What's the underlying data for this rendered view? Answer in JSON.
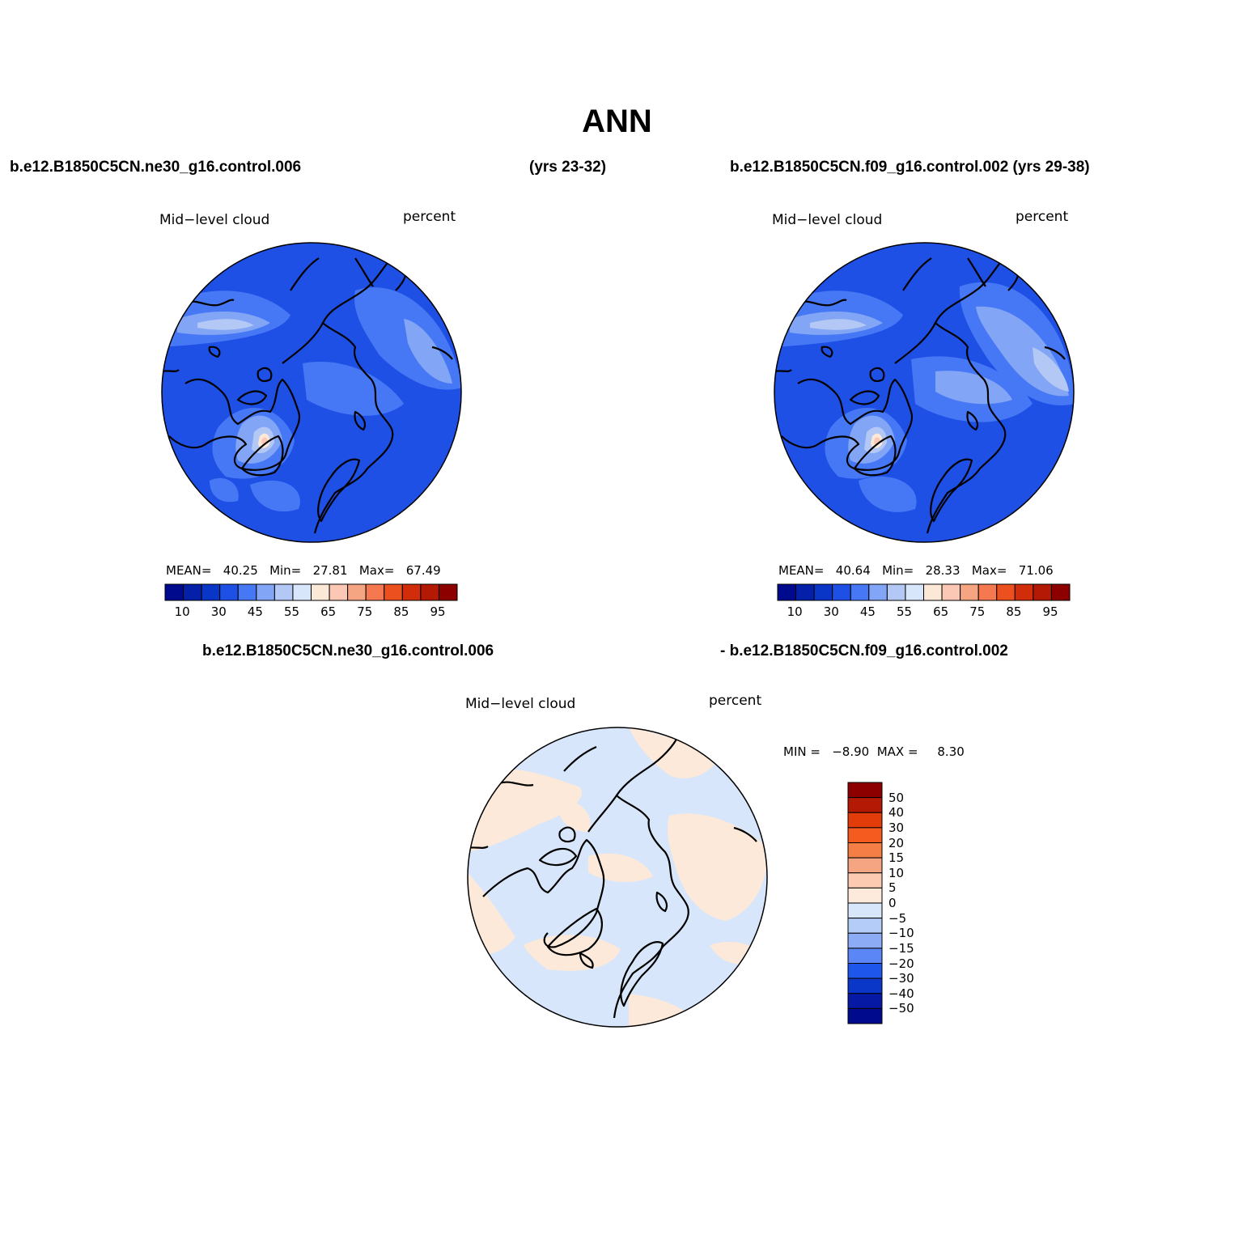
{
  "title": "ANN",
  "panels": [
    {
      "case": "b.e12.B1850C5CN.ne30_g16.control.006",
      "years": "(yrs 23-32)",
      "variable": "Mid−level cloud",
      "units": "percent",
      "stats": {
        "mean_label": "MEAN=",
        "mean": "40.25",
        "min_label": "Min=",
        "min": "27.81",
        "max_label": "Max=",
        "max": "67.49"
      }
    },
    {
      "case": "b.e12.B1850C5CN.f09_g16.control.002 (yrs 29-38)",
      "variable": "Mid−level cloud",
      "units": "percent",
      "stats": {
        "mean_label": "MEAN=",
        "mean": "40.64",
        "min_label": "Min=",
        "min": "28.33",
        "max_label": "Max=",
        "max": "71.06"
      }
    }
  ],
  "diff_panel": {
    "case_a": "b.e12.B1850C5CN.ne30_g16.control.006",
    "case_b": "- b.e12.B1850C5CN.f09_g16.control.002",
    "variable": "Mid−level cloud",
    "units": "percent",
    "stats_text": "MIN =   −8.90  MAX =     8.30"
  },
  "colorbar_abs": {
    "colors": [
      "#000a8c",
      "#0520a8",
      "#0a36c8",
      "#1e50e6",
      "#4678f5",
      "#82a5f5",
      "#b4c8f5",
      "#d7e6fa",
      "#fce8d7",
      "#fac8b4",
      "#f5a582",
      "#f57850",
      "#eb501e",
      "#d22d0a",
      "#b41905",
      "#8c0000"
    ],
    "ticks": [
      "10",
      "30",
      "45",
      "55",
      "65",
      "75",
      "85",
      "95"
    ]
  },
  "colorbar_diff": {
    "colors": [
      "#8c0000",
      "#b41905",
      "#e13c0a",
      "#f55a1e",
      "#f57d46",
      "#f5a582",
      "#fccab0",
      "#fdeadc",
      "#d7e6fa",
      "#b4cdf8",
      "#8cacf5",
      "#5a87f5",
      "#1e55eb",
      "#0a37c8",
      "#0519a5",
      "#000a8c"
    ],
    "labels": [
      "50",
      "40",
      "30",
      "20",
      "15",
      "10",
      "5",
      "0",
      "−5",
      "−10",
      "−15",
      "−20",
      "−30",
      "−40",
      "−50"
    ]
  },
  "map_colors": {
    "base_blue": "#1e50e6",
    "mid_blue": "#4678f5",
    "light_blue": "#82a5f5",
    "pale_blue": "#b4c8f5",
    "peach": "#fce8d7",
    "salmon": "#fac8b4",
    "diff_pos": "#fde9d9",
    "diff_neg": "#d7e6fa"
  }
}
